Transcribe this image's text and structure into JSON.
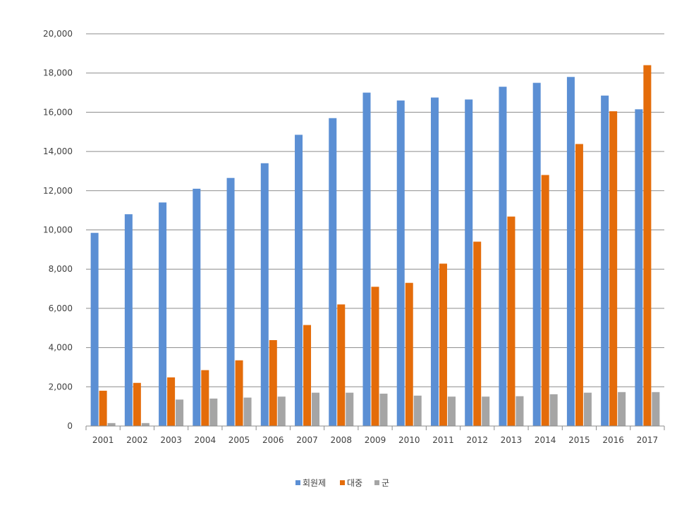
{
  "chart_data": {
    "type": "bar",
    "categories": [
      "2001",
      "2002",
      "2003",
      "2004",
      "2005",
      "2006",
      "2007",
      "2008",
      "2009",
      "2010",
      "2011",
      "2012",
      "2013",
      "2014",
      "2015",
      "2016",
      "2017"
    ],
    "series": [
      {
        "name": "회원제",
        "color": "#5B8FD4",
        "values": [
          9850,
          10800,
          11400,
          12100,
          12650,
          13400,
          14850,
          15700,
          17000,
          16600,
          16750,
          16650,
          17300,
          17500,
          17800,
          16850,
          16150
        ]
      },
      {
        "name": "대중",
        "color": "#E46C0A",
        "values": [
          1800,
          2200,
          2480,
          2850,
          3350,
          4380,
          5150,
          6200,
          7100,
          7300,
          8280,
          9400,
          10680,
          12800,
          14380,
          16050,
          18400
        ]
      },
      {
        "name": "군",
        "color": "#A5A5A5",
        "values": [
          150,
          150,
          1350,
          1400,
          1450,
          1500,
          1700,
          1700,
          1650,
          1550,
          1500,
          1500,
          1520,
          1620,
          1700,
          1730,
          1730
        ]
      }
    ],
    "ylim": [
      0,
      20000
    ],
    "y_ticks": [
      "0",
      "2,000",
      "4,000",
      "6,000",
      "8,000",
      "10,000",
      "12,000",
      "14,000",
      "16,000",
      "18,000",
      "20,000"
    ],
    "grid": true,
    "legend_position": "bottom"
  }
}
